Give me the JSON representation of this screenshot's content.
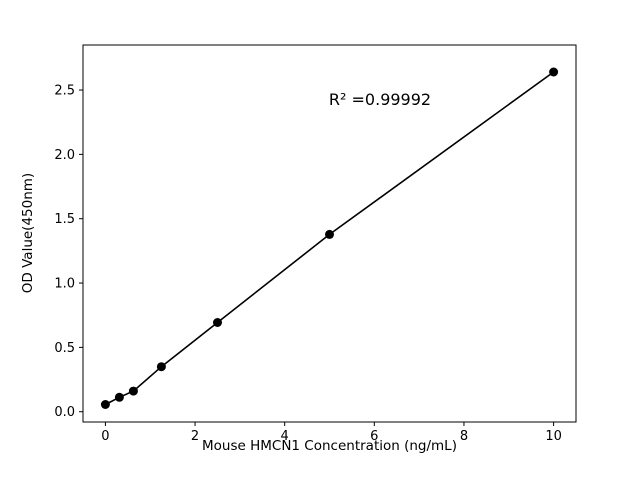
{
  "chart_data": {
    "type": "scatter",
    "x": [
      0,
      0.3125,
      0.625,
      1.25,
      2.5,
      5,
      10
    ],
    "y": [
      0.056,
      0.112,
      0.16,
      0.35,
      0.693,
      1.378,
      2.64
    ],
    "title": "",
    "xlabel": "Mouse HMCN1 Concentration (ng/mL)",
    "ylabel": "OD Value(450nm)",
    "annotation": "R² =0.99992",
    "xlim": [
      -0.5,
      10.5
    ],
    "ylim": [
      -0.08,
      2.85
    ],
    "xticks": [
      0,
      2,
      4,
      6,
      8,
      10
    ],
    "yticks": [
      0.0,
      0.5,
      1.0,
      1.5,
      2.0,
      2.5
    ],
    "grid": false,
    "legend": null,
    "line_color": "#000000",
    "marker_color": "#000000",
    "background_color": "#ffffff"
  }
}
